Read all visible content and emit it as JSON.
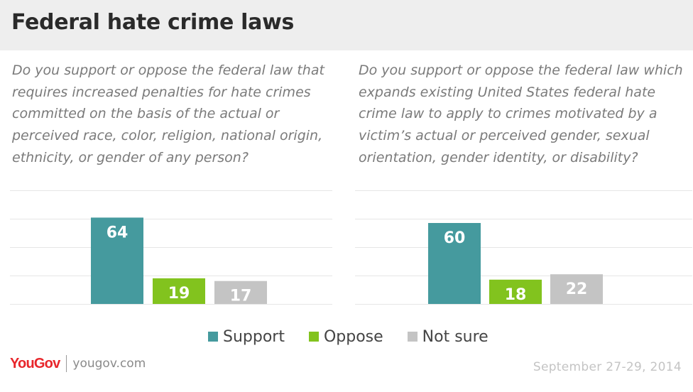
{
  "header": {
    "title": "Federal hate crime laws"
  },
  "colors": {
    "support": "#459a9e",
    "oppose": "#82c31e",
    "not_sure": "#c4c4c4",
    "gridline": "#e6e6e6",
    "brand": "#e8262b"
  },
  "chart_data": [
    {
      "type": "bar",
      "question": "Do you support or oppose the federal law that requires increased penalties for hate crimes committed on the basis of the actual or perceived race, color, religion, national origin, ethnicity, or gender of any person?",
      "categories": [
        "Support",
        "Oppose",
        "Not sure"
      ],
      "values": [
        64,
        19,
        17
      ],
      "ylim": [
        0,
        80
      ],
      "grid": true
    },
    {
      "type": "bar",
      "question": "Do you support or oppose the federal law which expands existing United States federal hate crime law to apply to crimes motivated by a victim’s actual or perceived gender, sexual orientation, gender identity, or disability?",
      "categories": [
        "Support",
        "Oppose",
        "Not sure"
      ],
      "values": [
        60,
        18,
        22
      ],
      "ylim": [
        0,
        80
      ],
      "grid": true
    }
  ],
  "legend": {
    "items": [
      {
        "label": "Support",
        "color": "#459a9e"
      },
      {
        "label": "Oppose",
        "color": "#82c31e"
      },
      {
        "label": "Not sure",
        "color": "#c4c4c4"
      }
    ]
  },
  "footer": {
    "logo_text": "YouGov",
    "site": "yougov.com",
    "date": "September 27-29, 2014"
  }
}
